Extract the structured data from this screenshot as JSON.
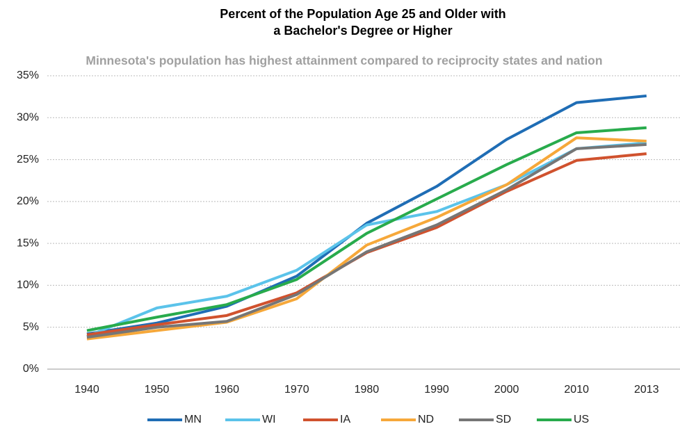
{
  "chart_data": {
    "type": "line",
    "title": "Percent of the Population Age 25 and Older with a Bachelor's Degree or Higher",
    "subtitle": "Minnesota's population has highest attainment compared to reciprocity states and nation",
    "categories": [
      "1940",
      "1950",
      "1960",
      "1970",
      "1980",
      "1990",
      "2000",
      "2010",
      "2013"
    ],
    "series": [
      {
        "name": "MN",
        "color": "#1f6db5",
        "values": [
          4.2,
          5.5,
          7.5,
          11.1,
          17.4,
          21.8,
          27.4,
          31.8,
          32.6
        ]
      },
      {
        "name": "WI",
        "color": "#5bc3ea",
        "values": [
          3.9,
          7.3,
          8.7,
          11.8,
          17.2,
          18.8,
          22.0,
          26.3,
          27.0
        ]
      },
      {
        "name": "IA",
        "color": "#d0522e",
        "values": [
          4.1,
          5.3,
          6.4,
          9.1,
          13.9,
          16.9,
          21.2,
          24.9,
          25.7
        ]
      },
      {
        "name": "ND",
        "color": "#f6a83a",
        "values": [
          3.6,
          4.6,
          5.6,
          8.4,
          14.8,
          18.1,
          22.0,
          27.6,
          27.2
        ]
      },
      {
        "name": "SD",
        "color": "#767676",
        "values": [
          3.8,
          5.0,
          5.7,
          8.9,
          14.0,
          17.2,
          21.4,
          26.3,
          26.8
        ]
      },
      {
        "name": "US",
        "color": "#28ab4c",
        "values": [
          4.6,
          6.2,
          7.7,
          10.7,
          16.2,
          20.3,
          24.4,
          28.2,
          28.8
        ]
      }
    ],
    "ylim": [
      0,
      35
    ],
    "yticks": [
      {
        "value": 0,
        "label": "0%"
      },
      {
        "value": 5,
        "label": "5%"
      },
      {
        "value": 10,
        "label": "10%"
      },
      {
        "value": 15,
        "label": "15%"
      },
      {
        "value": 20,
        "label": "20%"
      },
      {
        "value": 25,
        "label": "25%"
      },
      {
        "value": 30,
        "label": "30%"
      },
      {
        "value": 35,
        "label": "35%"
      }
    ],
    "grid": true,
    "legend": "bottom"
  }
}
